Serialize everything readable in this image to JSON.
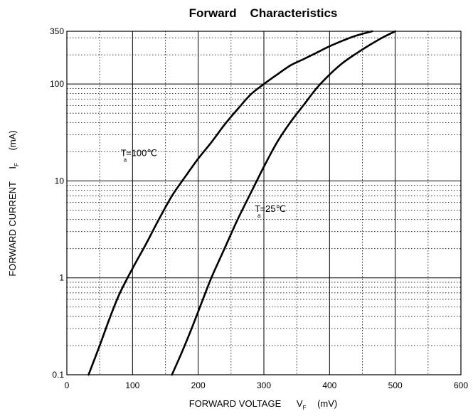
{
  "chart_data": {
    "type": "line",
    "title": "Forward    Characteristics",
    "xlabel": "FORWARD VOLTAGE",
    "xlabel_symbol": "V",
    "xlabel_symbol_sub": "F",
    "xlabel_unit": "(mV)",
    "ylabel": "FORWARD CURRENT",
    "ylabel_symbol": "I",
    "ylabel_symbol_sub": "F",
    "ylabel_unit": "(mA)",
    "xlim": [
      0,
      600
    ],
    "ylim": [
      0.1,
      350
    ],
    "y_scale": "log",
    "x_ticks": [
      0,
      100,
      200,
      300,
      400,
      500,
      600
    ],
    "x_tick_labels": [
      "0",
      "100",
      "200",
      "300",
      "400",
      "500",
      "600"
    ],
    "y_ticks": [
      0.1,
      1,
      10,
      100,
      350
    ],
    "y_tick_labels": [
      "0.1",
      "1",
      "10",
      "100",
      "350"
    ],
    "grid": "dotted minor, solid at decades",
    "series": [
      {
        "annotation": {
          "prefix": "T",
          "sub": "a",
          "suffix": "=100℃"
        },
        "annotation_at": {
          "x": 82,
          "y": 18
        },
        "x": [
          33,
          50,
          65,
          80,
          100,
          120,
          140,
          160,
          180,
          200,
          220,
          240,
          260,
          280,
          300,
          320,
          340,
          360,
          380,
          400,
          420,
          440,
          465
        ],
        "y": [
          0.1,
          0.2,
          0.38,
          0.68,
          1.25,
          2.2,
          4,
          7,
          11,
          17,
          25,
          38,
          55,
          78,
          100,
          125,
          155,
          180,
          210,
          245,
          280,
          315,
          350
        ]
      },
      {
        "annotation": {
          "prefix": "T",
          "sub": "a",
          "suffix": "=25℃"
        },
        "annotation_at": {
          "x": 286,
          "y": 4.8
        },
        "x": [
          160,
          175,
          190,
          205,
          220,
          240,
          260,
          280,
          300,
          320,
          340,
          360,
          380,
          400,
          420,
          440,
          460,
          480,
          500
        ],
        "y": [
          0.1,
          0.17,
          0.3,
          0.55,
          1.0,
          2.0,
          4.0,
          7.5,
          14,
          25,
          40,
          60,
          90,
          125,
          165,
          205,
          250,
          300,
          350
        ]
      }
    ]
  }
}
